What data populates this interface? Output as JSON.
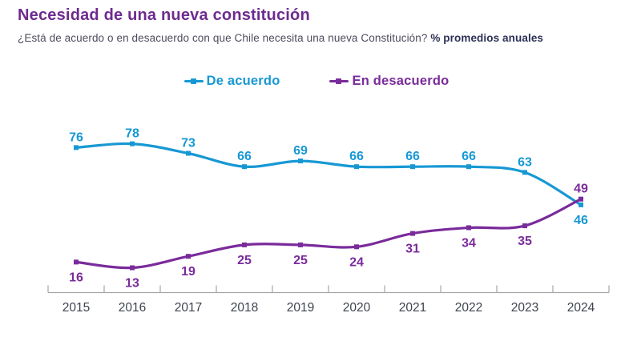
{
  "header": {
    "title": "Necesidad de una nueva constitución",
    "subtitle": "¿Está de acuerdo o en desacuerdo con que Chile necesita una nueva Constitución? ",
    "subtitle_emphasis": "% promedios anuales"
  },
  "legend": {
    "items": [
      {
        "label": "De acuerdo",
        "color": "#1798d4"
      },
      {
        "label": "En desacuerdo",
        "color": "#7a2b9b"
      }
    ]
  },
  "chart_data": {
    "type": "line",
    "title": "Necesidad de una nueva constitución",
    "subtitle": "¿Está de acuerdo o en desacuerdo con que Chile necesita una nueva Constitución? % promedios anuales",
    "categories": [
      "2015",
      "2016",
      "2017",
      "2018",
      "2019",
      "2020",
      "2021",
      "2022",
      "2023",
      "2024"
    ],
    "series": [
      {
        "name": "De acuerdo",
        "color": "#1798d4",
        "values": [
          76,
          78,
          73,
          66,
          69,
          66,
          66,
          66,
          63,
          46
        ],
        "label_sides": [
          "above",
          "above",
          "above",
          "above",
          "above",
          "above",
          "above",
          "above",
          "above",
          "below"
        ]
      },
      {
        "name": "En desacuerdo",
        "color": "#7a2b9b",
        "values": [
          16,
          13,
          19,
          25,
          25,
          24,
          31,
          34,
          35,
          49
        ],
        "label_sides": [
          "below",
          "below",
          "below",
          "below",
          "below",
          "below",
          "below",
          "below",
          "below",
          "above"
        ]
      }
    ],
    "ylim": [
      0,
      100
    ],
    "grid": false,
    "legend_position": "top",
    "data_labels": true,
    "xlabel": "",
    "ylabel": "",
    "style": {
      "axis_color": "#a6a6a6",
      "tick_label_color": "#3e434e",
      "marker": "square",
      "line_width": 3.2
    }
  }
}
